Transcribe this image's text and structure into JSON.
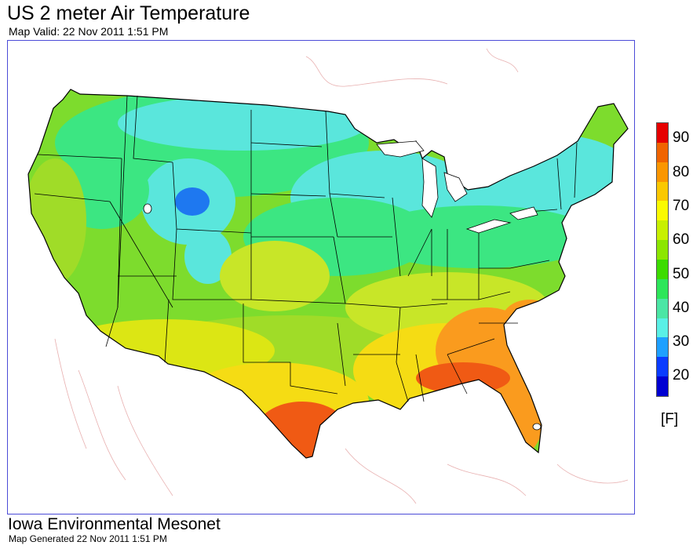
{
  "header": {
    "title": "US 2 meter Air Temperature",
    "valid": "Map Valid: 22 Nov 2011 1:51 PM"
  },
  "legend": {
    "unit": "[F]",
    "labels": [
      "90",
      "80",
      "70",
      "60",
      "50",
      "40",
      "30",
      "20"
    ],
    "colors": [
      "#e60000",
      "#f06400",
      "#fa9600",
      "#fac800",
      "#fafa00",
      "#c8f000",
      "#8ce600",
      "#3cdc00",
      "#2de65a",
      "#4be6a5",
      "#5af0e6",
      "#1ea0ff",
      "#0a3cff",
      "#0000d2"
    ]
  },
  "footer": {
    "org": "Iowa Environmental Mesonet",
    "generated": "Map Generated 22 Nov 2011 1:51 PM"
  },
  "colors": {
    "frame": "#4b4bd8",
    "state_lines": "#000000",
    "outside_contours": "#e8b0b0",
    "hot": "#f05a14",
    "warm": "#fa9b1e",
    "mild": "#f5dc14",
    "cool": "#7ddc2d",
    "cold": "#3ce682",
    "colder": "#5ae6dc",
    "coldest": "#1e78f0"
  }
}
